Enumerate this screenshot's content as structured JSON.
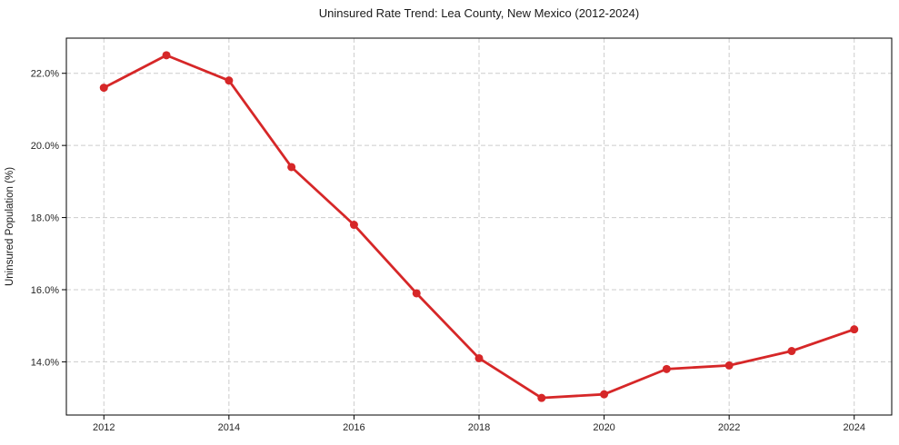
{
  "chart_data": {
    "type": "line",
    "title": "Uninsured Rate Trend: Lea County, New Mexico (2012-2024)",
    "xlabel": "",
    "ylabel": "Uninsured Population (%)",
    "x": [
      2012,
      2013,
      2014,
      2015,
      2016,
      2017,
      2018,
      2019,
      2020,
      2021,
      2022,
      2023,
      2024
    ],
    "values": [
      21.6,
      22.5,
      21.8,
      19.4,
      17.8,
      15.9,
      14.1,
      13.0,
      13.1,
      13.8,
      13.9,
      14.3,
      14.9
    ],
    "xlim": [
      2011.4,
      2024.6
    ],
    "ylim": [
      12.525,
      22.975
    ],
    "xticks": {
      "values": [
        2012,
        2014,
        2016,
        2018,
        2020,
        2022,
        2024
      ],
      "labels": [
        "2012",
        "2014",
        "2016",
        "2018",
        "2020",
        "2022",
        "2024"
      ]
    },
    "yticks": {
      "values": [
        14,
        16,
        18,
        20,
        22
      ],
      "labels": [
        "14.0%",
        "16.0%",
        "18.0%",
        "20.0%",
        "22.0%"
      ]
    },
    "grid": true,
    "grid_style": "dashed",
    "legend": "none",
    "marker": "circle",
    "colors": {
      "line": "#d62728",
      "grid": "#cccccc",
      "axis": "#000000",
      "text": "#262626"
    }
  }
}
